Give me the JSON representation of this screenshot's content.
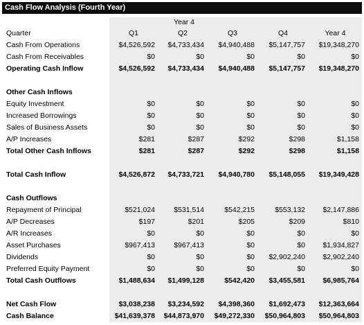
{
  "title": "Cash Flow Analysis (Fourth Year)",
  "year_header": "Year 4",
  "columns": {
    "label": "Quarter",
    "q1": "Q1",
    "q2": "Q2",
    "q3": "Q3",
    "q4": "Q4",
    "total": "Year 4"
  },
  "sections": [
    {
      "rows": [
        {
          "label": "Cash From Operations",
          "values": [
            "$4,526,592",
            "$4,733,434",
            "$4,940,488",
            "$5,147,757",
            "$19,348,270"
          ],
          "bold": false
        },
        {
          "label": "Cash From Receivables",
          "values": [
            "$0",
            "$0",
            "$0",
            "$0",
            "$0"
          ],
          "bold": false
        },
        {
          "label": "Operating Cash Inflow",
          "values": [
            "$4,526,592",
            "$4,733,434",
            "$4,940,488",
            "$5,147,757",
            "$19,348,270"
          ],
          "bold": true
        }
      ]
    },
    {
      "heading": "Other Cash Inflows",
      "rows": [
        {
          "label": "Equity Investment",
          "values": [
            "$0",
            "$0",
            "$0",
            "$0",
            "$0"
          ],
          "bold": false
        },
        {
          "label": "Increased Borrowings",
          "values": [
            "$0",
            "$0",
            "$0",
            "$0",
            "$0"
          ],
          "bold": false
        },
        {
          "label": "Sales of Business Assets",
          "values": [
            "$0",
            "$0",
            "$0",
            "$0",
            "$0"
          ],
          "bold": false
        },
        {
          "label": "A/P Increases",
          "values": [
            "$281",
            "$287",
            "$292",
            "$298",
            "$1,158"
          ],
          "bold": false
        },
        {
          "label": "Total Other Cash Inflows",
          "values": [
            "$281",
            "$287",
            "$292",
            "$298",
            "$1,158"
          ],
          "bold": true
        }
      ]
    },
    {
      "rows": [
        {
          "label": "Total Cash Inflow",
          "values": [
            "$4,526,872",
            "$4,733,721",
            "$4,940,780",
            "$5,148,055",
            "$19,349,428"
          ],
          "bold": true
        }
      ]
    },
    {
      "heading": "Cash Outflows",
      "rows": [
        {
          "label": "Repayment of Principal",
          "values": [
            "$521,024",
            "$531,514",
            "$542,215",
            "$553,132",
            "$2,147,886"
          ],
          "bold": false
        },
        {
          "label": "A/P Decreases",
          "values": [
            "$197",
            "$201",
            "$205",
            "$209",
            "$810"
          ],
          "bold": false
        },
        {
          "label": "A/R Increases",
          "values": [
            "$0",
            "$0",
            "$0",
            "$0",
            "$0"
          ],
          "bold": false
        },
        {
          "label": "Asset Purchases",
          "values": [
            "$967,413",
            "$967,413",
            "$0",
            "$0",
            "$1,934,827"
          ],
          "bold": false
        },
        {
          "label": "Dividends",
          "values": [
            "$0",
            "$0",
            "$0",
            "$2,902,240",
            "$2,902,240"
          ],
          "bold": false
        },
        {
          "label": "Preferred Equity Payment",
          "values": [
            "$0",
            "$0",
            "$0",
            "$0",
            "$0"
          ],
          "bold": false
        },
        {
          "label": "Total Cash Outflows",
          "values": [
            "$1,488,634",
            "$1,499,128",
            "$542,420",
            "$3,455,581",
            "$6,985,764"
          ],
          "bold": true
        }
      ]
    },
    {
      "rows": [
        {
          "label": "Net Cash Flow",
          "values": [
            "$3,038,238",
            "$3,234,592",
            "$4,398,360",
            "$1,692,473",
            "$12,363,664"
          ],
          "bold": true
        },
        {
          "label": "Cash Balance",
          "values": [
            "$41,639,378",
            "$44,873,970",
            "$49,272,330",
            "$50,964,803",
            "$50,964,803"
          ],
          "bold": true
        }
      ]
    }
  ]
}
